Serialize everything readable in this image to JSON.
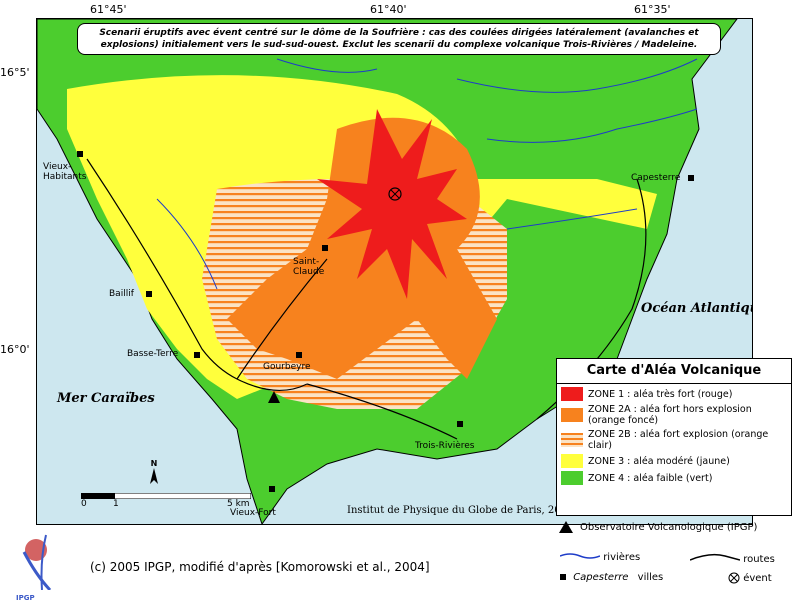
{
  "map": {
    "ticks": {
      "top": [
        "61°45'",
        "61°40'",
        "61°35'"
      ],
      "left": [
        "16°5'",
        "16°0'"
      ]
    },
    "title": "Scenarii éruptifs avec évent centré sur le dôme de la Soufrière : cas des coulées dirigées latéralement (avalanches et explosions) initialement vers le sud-sud-ouest. Exclut les scenarii du complexe volcanique Trois-Rivières / Madeleine.",
    "places": {
      "vieux_habitants": "Vieux-Habitants",
      "capesterre": "Capesterre",
      "saint_claude": "Saint-Claude",
      "baillif": "Baillif",
      "basse_terre": "Basse-Terre",
      "gourbeyre": "Gourbeyre",
      "trois_rivieres": "Trois-Rivières",
      "vieux_fort": "Vieux-Fort"
    },
    "seas": {
      "atlantic": "Océan Atlantique",
      "caribbean": "Mer Caraïbes"
    },
    "north_label": "N",
    "scale": {
      "labels": [
        "0",
        "1",
        "5 km"
      ]
    },
    "institute": "Institut de Physique du Globe de Paris, 2004"
  },
  "legend": {
    "title": "Carte d'Aléa Volcanique",
    "zones": [
      {
        "label": "ZONE 1 : aléa très fort (rouge)",
        "color": "#ee1c1c"
      },
      {
        "label": "ZONE 2A : aléa fort hors explosion (orange foncé)",
        "color": "#f7821e"
      },
      {
        "label": "ZONE 2B : aléa fort explosion (orange clair)",
        "color": "#f7821e"
      },
      {
        "label": "ZONE 3 : aléa modéré (jaune)",
        "color": "#ffff3c"
      },
      {
        "label": "ZONE 4 : aléa faible (vert)",
        "color": "#4ccd2e"
      }
    ],
    "observatory": "Observatoire Volcanologique (IPGP)",
    "rivers": "rivières",
    "roads": "routes",
    "town_example": "Capesterre",
    "towns": "villes",
    "vent": "évent"
  },
  "credit": "(c) 2005 IPGP, modifié d'après [Komorowski et al., 2004]",
  "logo_text": "IPGP"
}
